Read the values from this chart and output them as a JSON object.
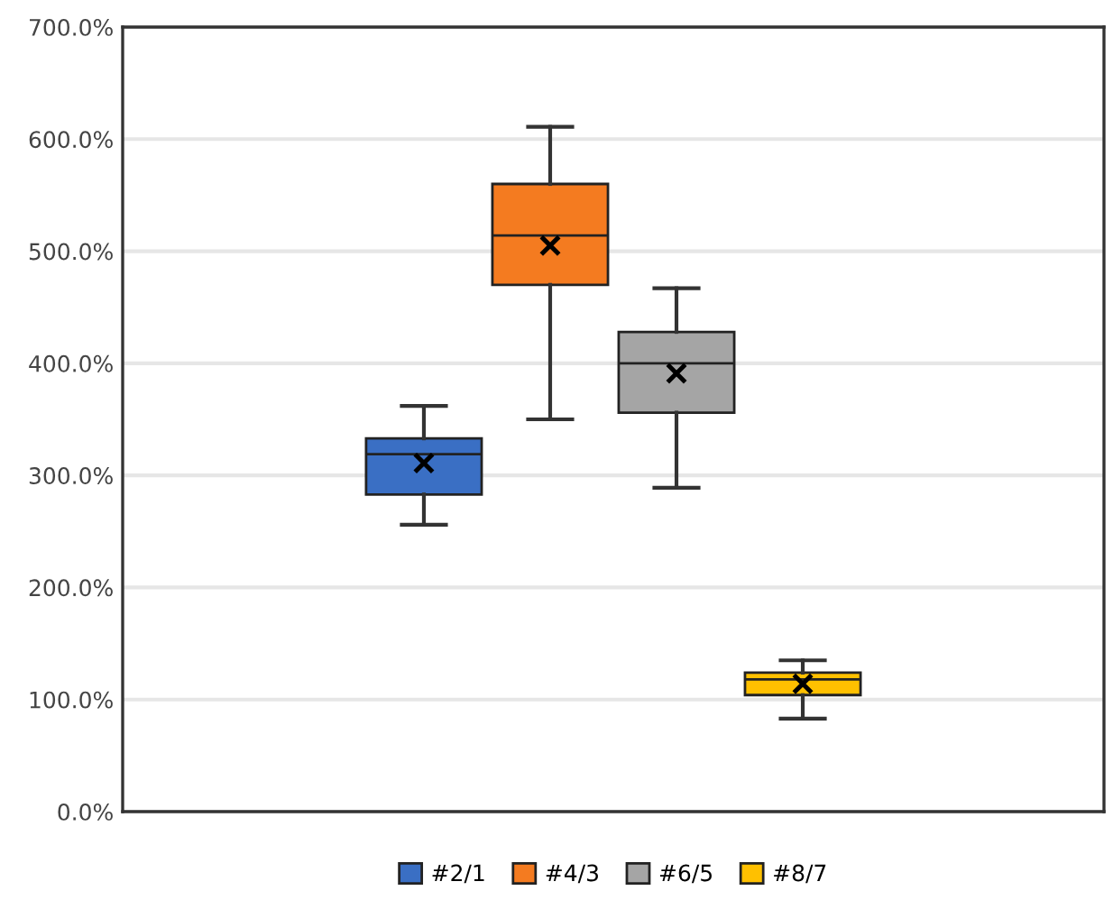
{
  "chart_data": {
    "type": "box",
    "categories": [
      null
    ],
    "ylim": [
      0,
      700
    ],
    "yticks": [
      {
        "value": 0,
        "label": "0.0%"
      },
      {
        "value": 100,
        "label": "100.0%"
      },
      {
        "value": 200,
        "label": "200.0%"
      },
      {
        "value": 300,
        "label": "300.0%"
      },
      {
        "value": 400,
        "label": "400.0%"
      },
      {
        "value": 500,
        "label": "500.0%"
      },
      {
        "value": 600,
        "label": "600.0%"
      },
      {
        "value": 700,
        "label": "700.0%"
      }
    ],
    "grid": "y",
    "legend": "bottom",
    "marker": "cross",
    "series": [
      {
        "name": "#2/1",
        "color": "#3a6fc4",
        "boxes": [
          {
            "low": 256,
            "q1": 283,
            "median": 319,
            "q3": 333,
            "high": 362,
            "mean": 311
          }
        ]
      },
      {
        "name": "#4/3",
        "color": "#f47b20",
        "boxes": [
          {
            "low": 350,
            "q1": 470,
            "median": 514,
            "q3": 560,
            "high": 611,
            "mean": 505
          }
        ]
      },
      {
        "name": "#6/5",
        "color": "#a5a5a5",
        "boxes": [
          {
            "low": 289,
            "q1": 356,
            "median": 400,
            "q3": 428,
            "high": 467,
            "mean": 391
          }
        ]
      },
      {
        "name": "#8/7",
        "color": "#ffc000",
        "boxes": [
          {
            "low": 83,
            "q1": 104,
            "median": 118,
            "q3": 124,
            "high": 135,
            "mean": 114
          }
        ]
      }
    ]
  }
}
